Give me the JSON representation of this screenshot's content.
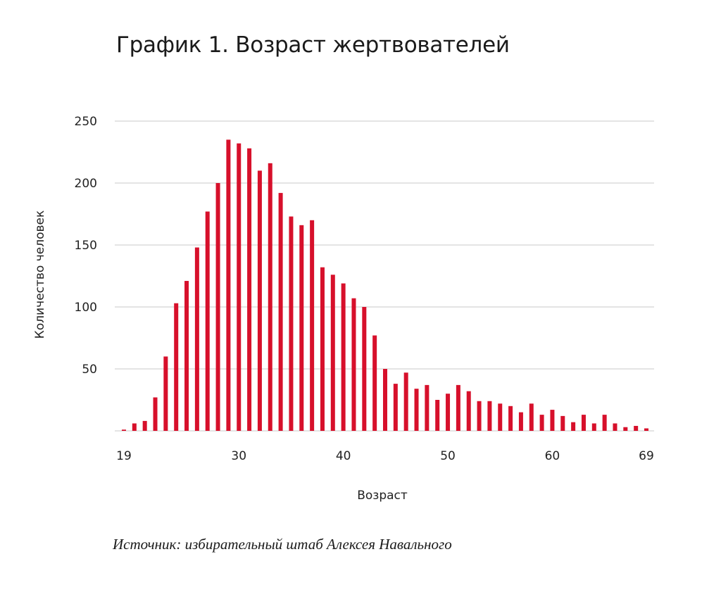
{
  "chart_data": {
    "type": "bar",
    "title": "График 1. Возраст жертвователей",
    "xlabel": "Возраст",
    "ylabel": "Количество человек",
    "source": "Источник: избирательный штаб Алексея Навального",
    "ylim": [
      0,
      250
    ],
    "yticks": [
      50,
      100,
      150,
      200,
      250
    ],
    "xticks": [
      19,
      30,
      40,
      50,
      60,
      69
    ],
    "grid": true,
    "bar_color": "#d7102b",
    "categories": [
      19,
      20,
      21,
      22,
      23,
      24,
      25,
      26,
      27,
      28,
      29,
      30,
      31,
      32,
      33,
      34,
      35,
      36,
      37,
      38,
      39,
      40,
      41,
      42,
      43,
      44,
      45,
      46,
      47,
      48,
      49,
      50,
      51,
      52,
      53,
      54,
      55,
      56,
      57,
      58,
      59,
      60,
      61,
      62,
      63,
      64,
      65,
      66,
      67,
      68,
      69
    ],
    "values": [
      1,
      6,
      8,
      27,
      60,
      103,
      121,
      148,
      177,
      200,
      235,
      232,
      228,
      210,
      216,
      192,
      173,
      166,
      170,
      132,
      126,
      119,
      107,
      100,
      77,
      50,
      38,
      47,
      34,
      37,
      25,
      30,
      37,
      32,
      24,
      24,
      22,
      20,
      15,
      22,
      13,
      17,
      12,
      7,
      13,
      6,
      13,
      6,
      3,
      4,
      2
    ]
  }
}
